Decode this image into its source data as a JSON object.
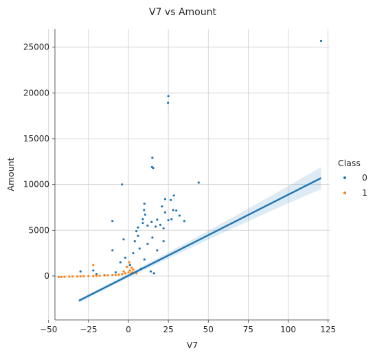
{
  "chart_data": {
    "type": "scatter",
    "title": "V7 vs Amount",
    "xlabel": "V7",
    "ylabel": "Amount",
    "xlim": [
      -46,
      126
    ],
    "ylim": [
      -4800,
      27000
    ],
    "xticks": [
      -50,
      -25,
      0,
      25,
      50,
      75,
      100,
      125
    ],
    "xtick_labels": [
      "−50",
      "−25",
      "0",
      "25",
      "50",
      "75",
      "100",
      "125"
    ],
    "yticks": [
      0,
      5000,
      10000,
      15000,
      20000,
      25000
    ],
    "ytick_labels": [
      "0",
      "5000",
      "10000",
      "15000",
      "20000",
      "25000"
    ],
    "grid": true,
    "legend": {
      "title": "Class",
      "placement": "right",
      "entries": [
        {
          "label": "0",
          "color": "#1f77b4"
        },
        {
          "label": "1",
          "color": "#ff7f0e"
        }
      ]
    },
    "series": [
      {
        "name": "0",
        "color": "#1f77b4",
        "points": [
          [
            120.6,
            25691
          ],
          [
            25.0,
            19656
          ],
          [
            24.8,
            18910
          ],
          [
            15.0,
            12910
          ],
          [
            14.8,
            11898
          ],
          [
            15.5,
            11790
          ],
          [
            -4.0,
            10000
          ],
          [
            44.0,
            10199
          ],
          [
            28.5,
            8790
          ],
          [
            23.0,
            8400
          ],
          [
            26.5,
            8300
          ],
          [
            10.0,
            7900
          ],
          [
            21.0,
            7600
          ],
          [
            9.8,
            7200
          ],
          [
            28.0,
            7200
          ],
          [
            10.5,
            6700
          ],
          [
            30.0,
            7150
          ],
          [
            23.0,
            6950
          ],
          [
            27.0,
            6200
          ],
          [
            32.0,
            6600
          ],
          [
            9.0,
            6200
          ],
          [
            18.0,
            6150
          ],
          [
            -10.0,
            6000
          ],
          [
            25.0,
            6100
          ],
          [
            14.5,
            5900
          ],
          [
            9.0,
            5800
          ],
          [
            20.0,
            5600
          ],
          [
            35.0,
            6000
          ],
          [
            12.0,
            5500
          ],
          [
            17.0,
            5400
          ],
          [
            22.0,
            5200
          ],
          [
            6.0,
            5300
          ],
          [
            5.0,
            4900
          ],
          [
            -3.0,
            4000
          ],
          [
            -10.0,
            2800
          ],
          [
            -22.0,
            600
          ],
          [
            -30.0,
            500
          ],
          [
            -20.0,
            200
          ],
          [
            -15.0,
            100
          ],
          [
            -8.0,
            400
          ],
          [
            -5.0,
            1500
          ],
          [
            -2.0,
            2000
          ],
          [
            1.0,
            1200
          ],
          [
            3.0,
            2500
          ],
          [
            7.0,
            3000
          ],
          [
            12.0,
            3500
          ],
          [
            15.0,
            4200
          ],
          [
            18.0,
            2800
          ],
          [
            22.0,
            3800
          ],
          [
            8.0,
            800
          ],
          [
            10.0,
            1800
          ],
          [
            14.0,
            500
          ],
          [
            16.0,
            300
          ],
          [
            4.0,
            3800
          ],
          [
            6.0,
            4400
          ]
        ]
      },
      {
        "name": "1",
        "color": "#ff7f0e",
        "points": [
          [
            -43.6,
            -100
          ],
          [
            -42.0,
            -100
          ],
          [
            -40.0,
            -80
          ],
          [
            -37.0,
            -70
          ],
          [
            -35.0,
            -60
          ],
          [
            -32.0,
            -50
          ],
          [
            -30.0,
            -40
          ],
          [
            -28.0,
            -30
          ],
          [
            -25.0,
            -20
          ],
          [
            -22.0,
            0
          ],
          [
            -20.0,
            20
          ],
          [
            -18.0,
            40
          ],
          [
            -15.0,
            60
          ],
          [
            -13.0,
            80
          ],
          [
            -10.0,
            100
          ],
          [
            -8.0,
            120
          ],
          [
            -6.0,
            150
          ],
          [
            -4.0,
            200
          ],
          [
            -2.0,
            300
          ],
          [
            0.0,
            400
          ],
          [
            1.0,
            600
          ],
          [
            2.0,
            900
          ],
          [
            3.0,
            700
          ],
          [
            -22.0,
            1200
          ],
          [
            -1.0,
            1000
          ],
          [
            0.5,
            1500
          ],
          [
            -3.0,
            500
          ],
          [
            2.5,
            400
          ],
          [
            5.0,
            300
          ],
          [
            1.5,
            250
          ]
        ]
      }
    ],
    "regression": {
      "color": "#1f77b4",
      "x_start": -31.0,
      "y_start": -2700,
      "x_end": 120.6,
      "y_end": 10700,
      "ci_start_half_width": 200,
      "ci_end_half_width": 1200
    }
  }
}
